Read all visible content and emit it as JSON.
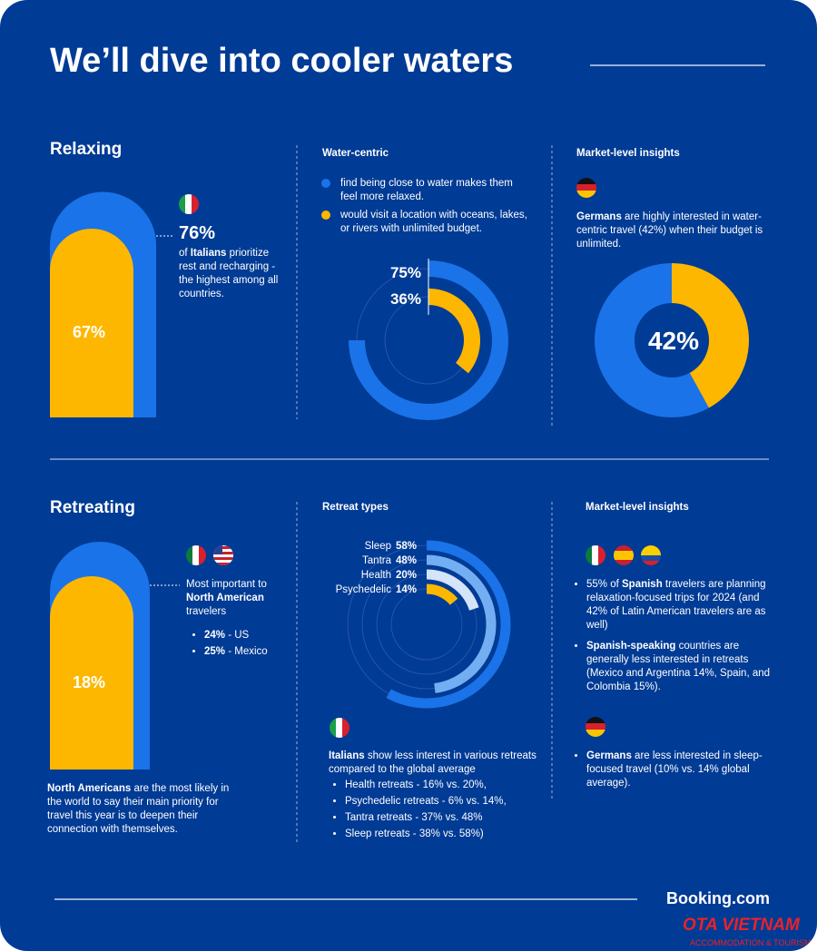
{
  "title": "We’ll dive into cooler waters",
  "relaxing": {
    "heading": "Relaxing",
    "big_value": "76%",
    "text": [
      "of ",
      "Italians",
      " prioritize rest and recharging - the highest among all countries."
    ],
    "pill_value": "67%"
  },
  "water": {
    "heading": "Water-centric",
    "legend": [
      "find being close to water makes them feel more relaxed.",
      "would visit a location with oceans, lakes, or rivers with unlimited budget."
    ],
    "chart": {
      "type": "radial-bar",
      "values": [
        75,
        36
      ],
      "value_labels": [
        "75%",
        "36%"
      ],
      "colors": [
        "#1a73e8",
        "#feb700"
      ],
      "max": 100
    }
  },
  "market1": {
    "heading": "Market-level insights",
    "text": [
      "Germans",
      " are highly interested in water-centric travel (42%) when their budget is unlimited."
    ],
    "chart": {
      "type": "donut",
      "values": [
        42
      ],
      "value_labels": [
        "42%"
      ],
      "colors": [
        "#feb700",
        "#1a73e8"
      ],
      "max": 100
    }
  },
  "retreating": {
    "heading": "Retreating",
    "text": [
      "Most important to ",
      "North American",
      " travelers"
    ],
    "items": [
      [
        "24%",
        " - US"
      ],
      [
        "25%",
        " - Mexico"
      ]
    ],
    "pill_value": "18%",
    "footer": [
      "North Americans",
      " are the most likely in the world to say their main priority for travel this year is to deepen their connection with themselves."
    ]
  },
  "retreat_types": {
    "heading": "Retreat types",
    "chart": {
      "type": "radial-bar",
      "categories": [
        "Sleep",
        "Tantra",
        "Health",
        "Psychedelic"
      ],
      "values": [
        58,
        48,
        20,
        14
      ],
      "value_labels": [
        "58%",
        "48%",
        "20%",
        "14%"
      ],
      "colors": [
        "#1a73e8",
        "#74aef2",
        "#d3e4fb",
        "#feb700"
      ],
      "max": 100
    },
    "text": [
      "Italians",
      " show less interest in various retreats compared to the global average"
    ],
    "items": [
      "Health retreats - 16% vs. 20%,",
      "Psychedelic retreats - 6% vs. 14%,",
      "Tantra retreats - 37% vs. 48%",
      "Sleep retreats - 38% vs. 58%)"
    ]
  },
  "market2": {
    "heading": "Market-level insights",
    "items": [
      [
        "55% of ",
        "Spanish",
        " travelers are planning relaxation-focused trips for 2024 (and 42% of Latin American travelers are as well)"
      ],
      [
        "Spanish-speaking",
        " countries are generally less interested in retreats (Mexico and Argentina 14%, Spain, and Colombia 15%)."
      ]
    ],
    "germany": [
      "Germans",
      " are less interested in sleep-focused travel (10% vs. 14% global average)."
    ]
  },
  "footer": {
    "brand": "Booking.com",
    "watermark": "OTA VIETNAM",
    "watermark_sub": "ACCOMMODATION & TOURISM"
  }
}
